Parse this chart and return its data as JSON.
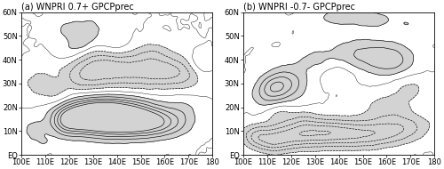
{
  "title_a": "(a) WNPRI 0.7+ GPCPprec",
  "title_b": "(b) WNPRI -0.7- GPCPprec",
  "lon_min": 100,
  "lon_max": 180,
  "lat_min": 0,
  "lat_max": 60,
  "xticks": [
    100,
    110,
    120,
    130,
    140,
    150,
    160,
    170,
    180
  ],
  "xtick_labels": [
    "100E",
    "110E",
    "120E",
    "130E",
    "140E",
    "150E",
    "160E",
    "170E",
    "180"
  ],
  "yticks": [
    0,
    10,
    20,
    30,
    40,
    50,
    60
  ],
  "ytick_labels": [
    "EQ",
    "10N",
    "20N",
    "30N",
    "40N",
    "50N",
    "60N"
  ],
  "shade_color": "#b0b0b0",
  "shade_alpha": 0.55,
  "background_color": "#ffffff",
  "contour_color": "#000000",
  "title_fontsize": 7.0,
  "tick_fontsize": 6.0,
  "figsize": [
    5.0,
    1.9
  ],
  "dpi": 100
}
